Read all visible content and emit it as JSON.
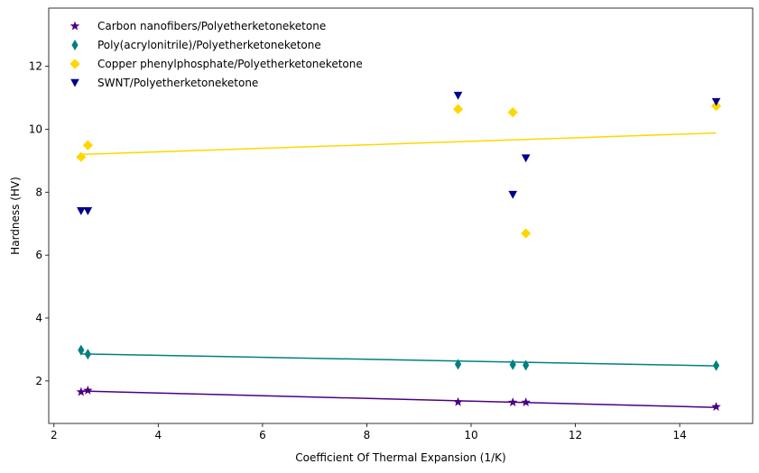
{
  "chart_data": {
    "type": "scatter",
    "xlabel": "Coefficient Of Thermal Expansion (1/K)",
    "ylabel": "Hardness (HV)",
    "xlim": [
      1.9,
      15.4
    ],
    "ylim": [
      0.65,
      13.85
    ],
    "xticks": [
      2,
      4,
      6,
      8,
      10,
      12,
      14
    ],
    "yticks": [
      2,
      4,
      6,
      8,
      10,
      12
    ],
    "grid": false,
    "legend_position": "top-left",
    "series": [
      {
        "name": "Carbon nanofibers/Polyetherketoneketone",
        "marker": "star",
        "color": "#4b0082",
        "x": [
          2.52,
          2.65,
          9.75,
          10.8,
          11.05,
          14.7
        ],
        "y": [
          1.65,
          1.7,
          1.33,
          1.32,
          1.32,
          1.18
        ],
        "trend": {
          "x": [
            2.52,
            14.7
          ],
          "y": [
            1.68,
            1.16
          ]
        }
      },
      {
        "name": "Poly(acrylonitrile)/Polyetherketoneketone",
        "marker": "thin-diamond",
        "color": "#008080",
        "x": [
          2.52,
          2.65,
          9.75,
          10.8,
          11.05,
          14.7
        ],
        "y": [
          2.98,
          2.85,
          2.53,
          2.52,
          2.5,
          2.49
        ],
        "trend": {
          "x": [
            2.52,
            14.7
          ],
          "y": [
            2.86,
            2.48
          ]
        }
      },
      {
        "name": "Copper phenylphosphate/Polyetherketoneketone",
        "marker": "diamond",
        "color": "#ffd700",
        "x": [
          2.52,
          2.65,
          9.75,
          10.8,
          11.05,
          14.7
        ],
        "y": [
          9.12,
          9.49,
          10.64,
          10.54,
          6.69,
          10.74
        ],
        "trend": {
          "x": [
            2.52,
            14.7
          ],
          "y": [
            9.2,
            9.88
          ]
        }
      },
      {
        "name": "SWNT/Polyetherketoneketone",
        "marker": "triangle-down",
        "color": "#00008b",
        "x": [
          2.52,
          2.65,
          9.75,
          10.8,
          11.05,
          14.7
        ],
        "y": [
          7.4,
          7.4,
          11.07,
          7.92,
          9.08,
          10.87
        ],
        "trend": null
      }
    ]
  }
}
